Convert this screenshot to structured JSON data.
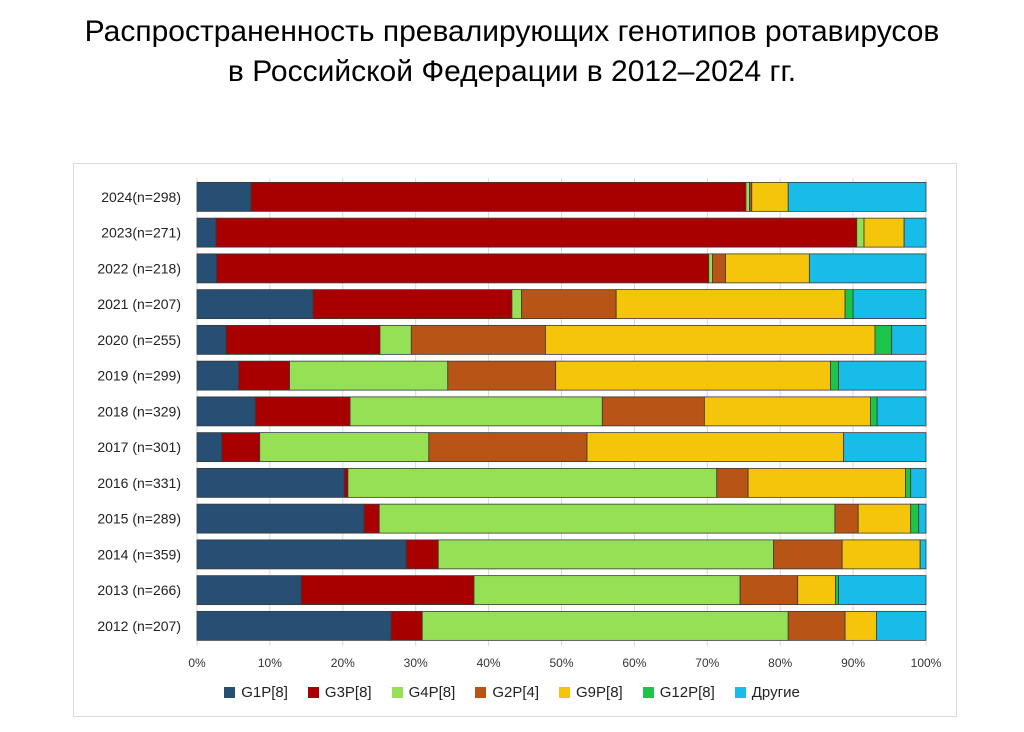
{
  "title": {
    "line1": "Распространенность превалирующих генотипов ротавирусов",
    "line2": "в Российской Федерации в 2012–2024 гг."
  },
  "chart_data": {
    "type": "bar",
    "orientation": "horizontal",
    "stacked": "percent",
    "title": "Распространенность превалирующих генотипов ротавирусов в Российской Федерации в 2012–2024 гг.",
    "xlabel": "",
    "ylabel": "",
    "xlim": [
      0,
      100
    ],
    "x_ticks": [
      "0%",
      "10%",
      "20%",
      "30%",
      "40%",
      "50%",
      "60%",
      "70%",
      "80%",
      "90%",
      "100%"
    ],
    "grid": "vertical",
    "legend_position": "bottom",
    "categories": [
      "2024(n=298)",
      "2023(n=271)",
      "2022 (n=218)",
      "2021 (n=207)",
      "2020 (n=255)",
      "2019 (n=299)",
      "2018 (n=329)",
      "2017 (n=301)",
      "2016 (n=331)",
      "2015 (n=289)",
      "2014 (n=359)",
      "2013 (n=266)",
      "2012 (n=207)"
    ],
    "series": [
      {
        "name": "G1P[8]",
        "color": "#264f73",
        "values": [
          7.4,
          2.6,
          2.7,
          15.9,
          4.0,
          5.7,
          8.0,
          3.4,
          20.2,
          22.9,
          28.7,
          14.3,
          26.6
        ]
      },
      {
        "name": "G3P[8]",
        "color": "#a80000",
        "values": [
          67.9,
          87.9,
          67.5,
          27.3,
          21.1,
          7.0,
          13.0,
          5.2,
          0.5,
          2.1,
          4.4,
          23.7,
          4.3
        ]
      },
      {
        "name": "G4P[8]",
        "color": "#95e055",
        "values": [
          0.5,
          1.0,
          0.5,
          1.3,
          4.3,
          21.7,
          34.6,
          23.2,
          50.6,
          62.5,
          46.0,
          36.5,
          50.2
        ]
      },
      {
        "name": "G2P[4]",
        "color": "#b85415",
        "values": [
          0.3,
          0,
          1.8,
          13.0,
          18.4,
          14.8,
          14.0,
          21.7,
          4.3,
          3.2,
          9.4,
          7.9,
          7.8
        ]
      },
      {
        "name": "G9P[8]",
        "color": "#f5c50c",
        "values": [
          5.0,
          5.5,
          11.5,
          31.4,
          45.2,
          37.7,
          22.8,
          35.2,
          21.6,
          7.2,
          10.7,
          5.2,
          4.3
        ]
      },
      {
        "name": "G12P[8]",
        "color": "#1cc44a",
        "values": [
          0,
          0,
          0,
          1.1,
          2.3,
          1.1,
          0.9,
          0,
          0.7,
          1.1,
          0,
          0.4,
          0
        ]
      },
      {
        "name": "Другие",
        "color": "#17bde8",
        "values": [
          18.9,
          3.0,
          16.0,
          10.0,
          4.7,
          12.0,
          6.7,
          11.3,
          2.1,
          1.0,
          0.8,
          12.0,
          6.8
        ]
      }
    ]
  }
}
